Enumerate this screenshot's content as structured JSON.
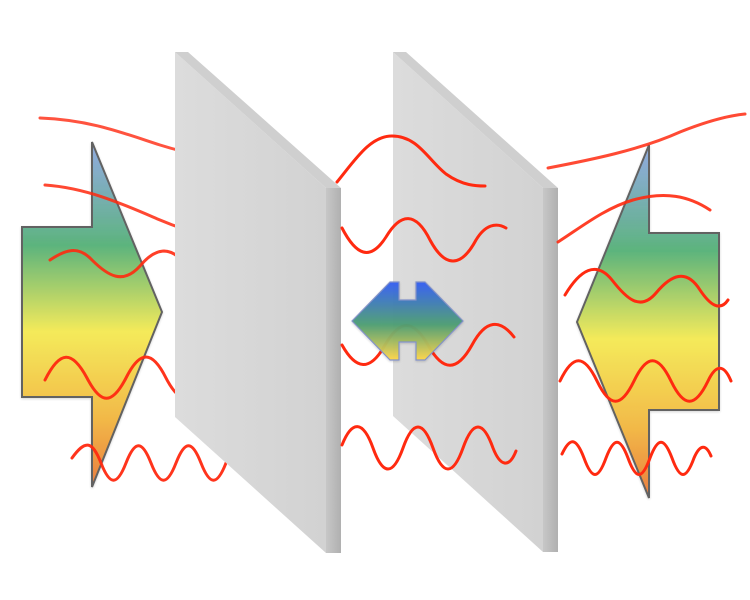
{
  "diagram": {
    "type": "casimir-effect-illustration",
    "plates": [
      {
        "name": "left-plate",
        "color": "#d9d9d9",
        "edge_color": "#bdbdbd"
      },
      {
        "name": "right-plate",
        "color": "#d9d9d9",
        "edge_color": "#bdbdbd"
      }
    ],
    "waves": {
      "color": "#ff2a10",
      "outside_left": {
        "count": 5,
        "description_hidden": true
      },
      "between_plates": {
        "count": 4
      },
      "outside_right": {
        "count": 5
      }
    },
    "arrows": {
      "left_force_arrow": {
        "direction": "right",
        "gradient": [
          "#5aa7e8",
          "#3fae63",
          "#f6e64a",
          "#e56c2b"
        ]
      },
      "right_force_arrow": {
        "direction": "left",
        "gradient": [
          "#5aa7e8",
          "#3fae63",
          "#f6e64a",
          "#e56c2b"
        ]
      },
      "center_double_arrow": {
        "direction": "both",
        "gradient": [
          "#3d5ef3",
          "#4b9d66",
          "#ffd24d"
        ]
      }
    }
  }
}
